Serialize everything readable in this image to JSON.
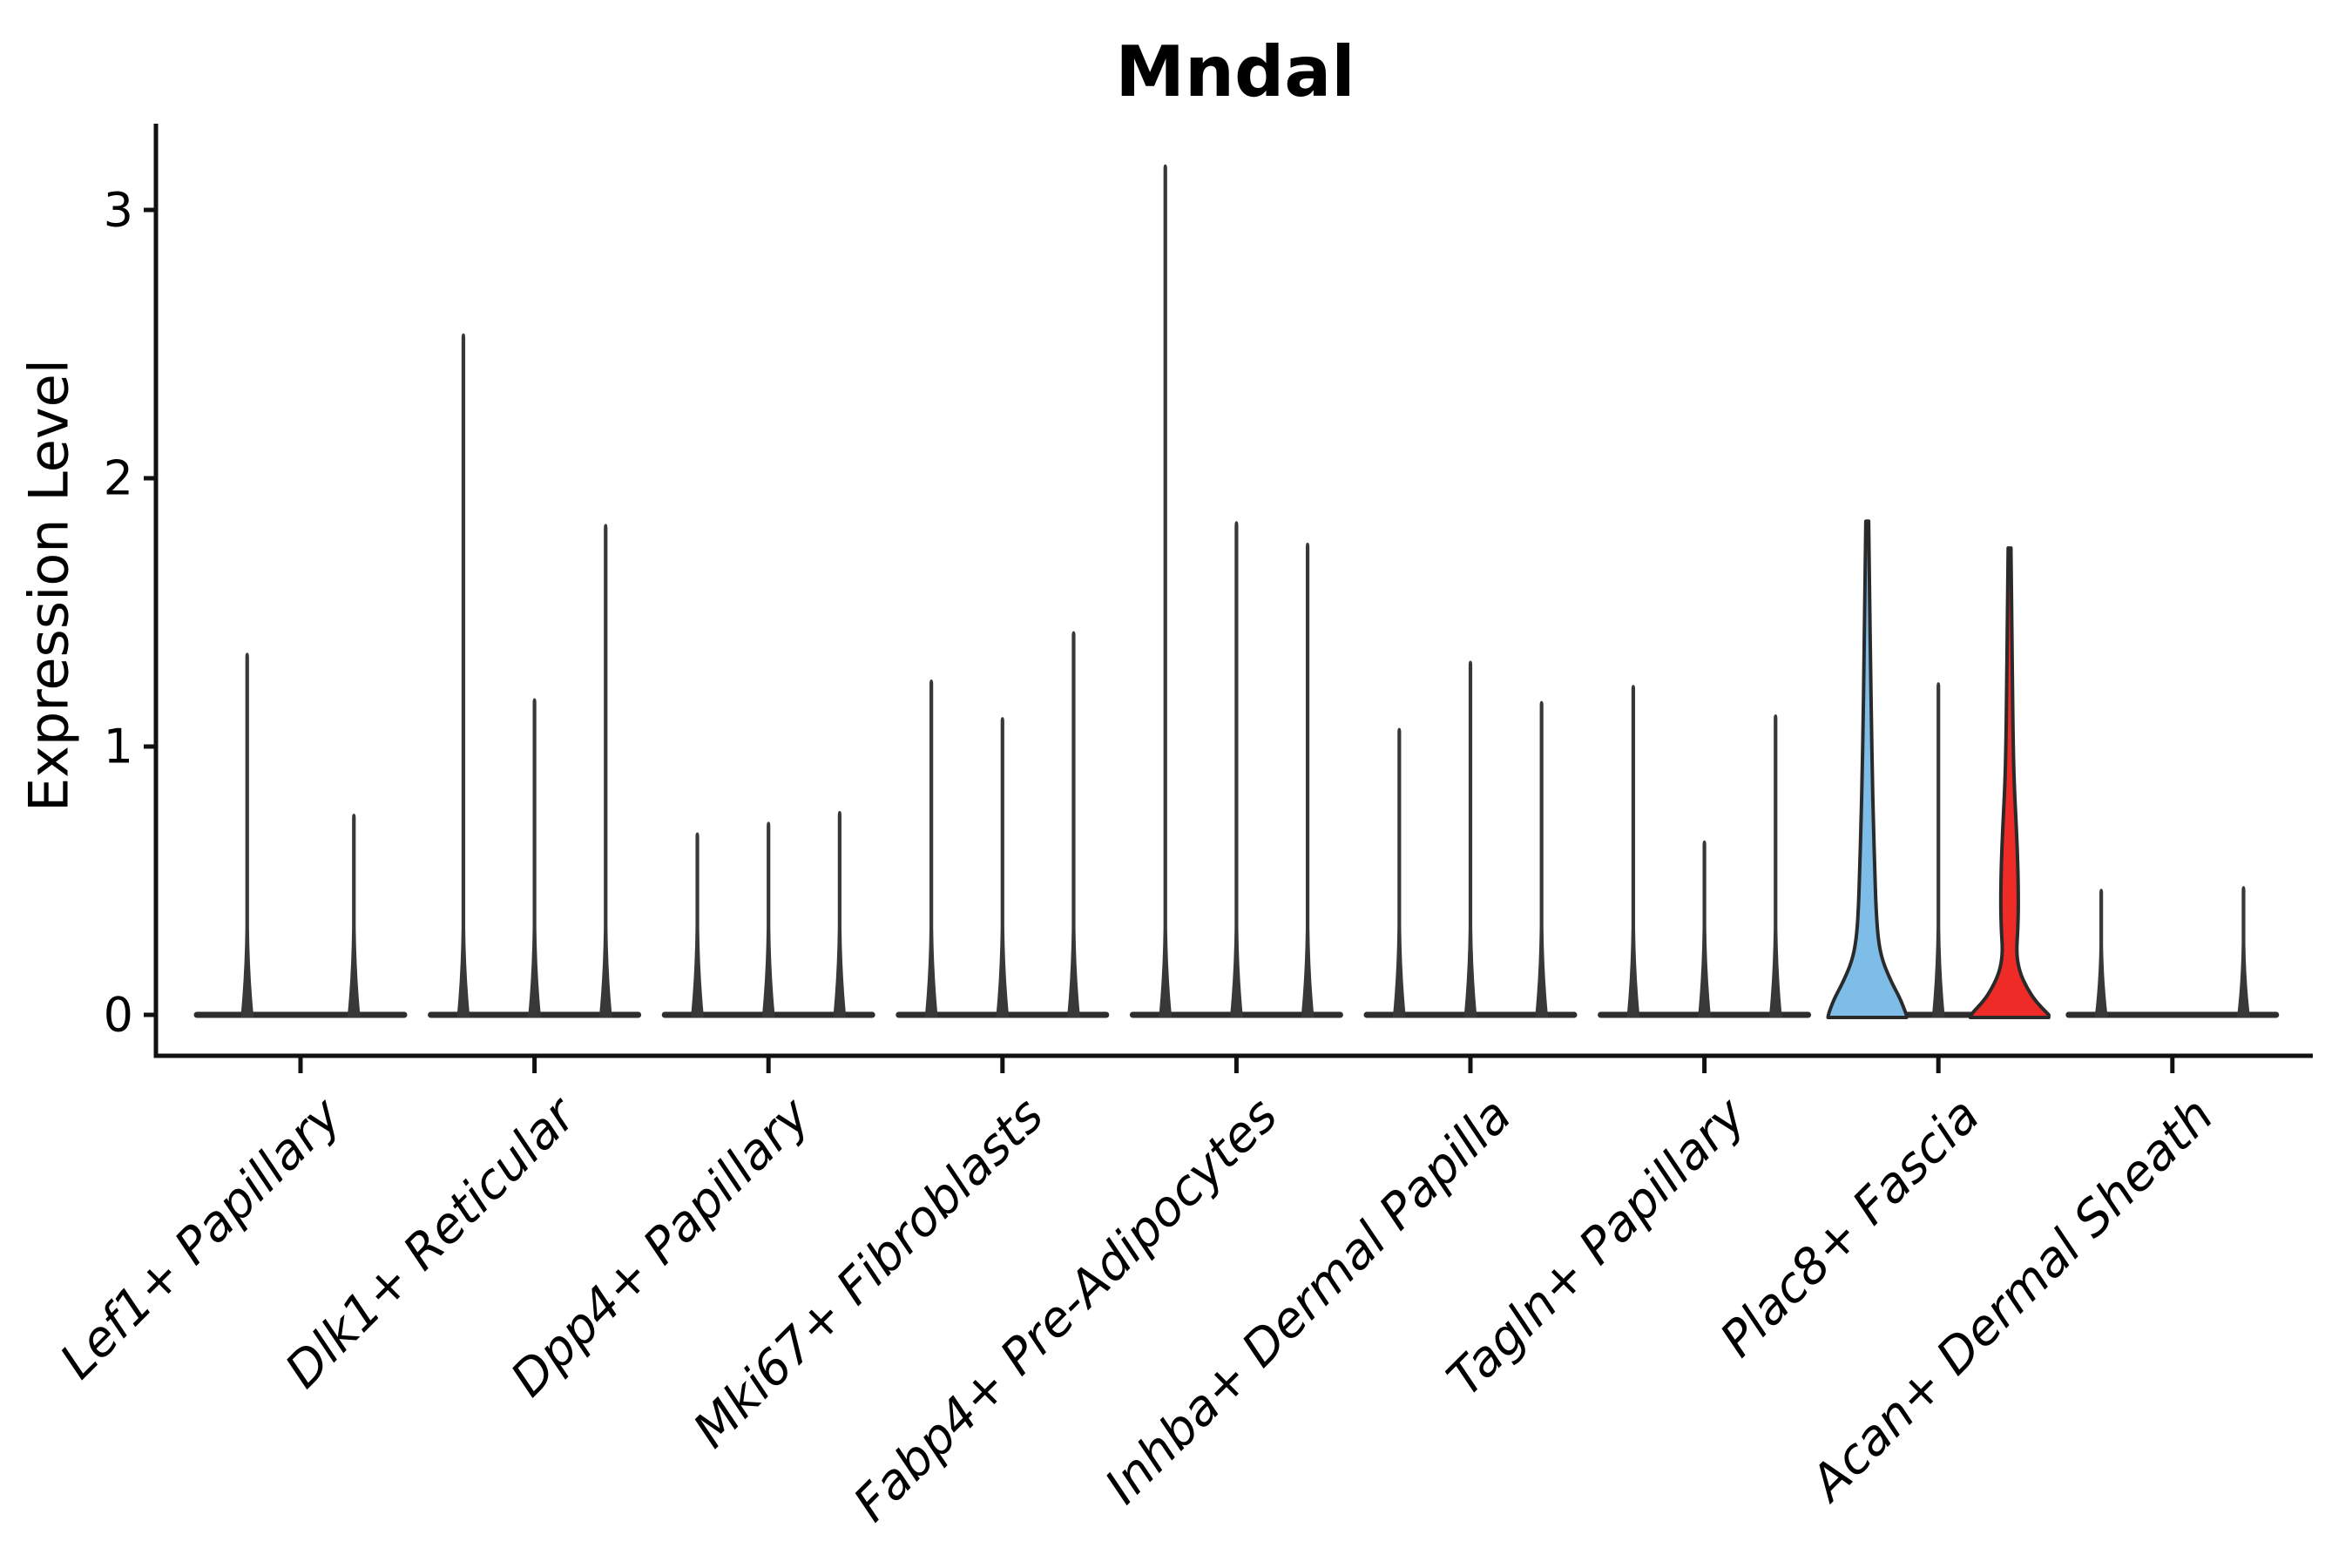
{
  "chart_data": {
    "type": "violin",
    "title": "Mndal",
    "ylabel": "Expression Level",
    "xlabel": "",
    "yticks": [
      0,
      1,
      2,
      3
    ],
    "ylim": [
      -0.16,
      3.33
    ],
    "grid": "off",
    "legend": "none",
    "colors": {
      "axis": "#111111",
      "spike": "#383838",
      "baseline": "#2e2e2e",
      "violin_outline": "#2a2a2a",
      "highlight_blue": "#7dbde8",
      "highlight_red": "#ee2b26",
      "background": "#ffffff"
    },
    "groups": [
      {
        "label": "Lef1+ Papillary",
        "violins": [
          {
            "max": 1.35
          },
          {
            "max": 0.75
          }
        ]
      },
      {
        "label": "Dlk1+ Reticular",
        "violins": [
          {
            "max": 2.54
          },
          {
            "max": 1.18
          },
          {
            "max": 1.83
          }
        ]
      },
      {
        "label": "Dpp4+ Papillary",
        "violins": [
          {
            "max": 0.68
          },
          {
            "max": 0.72
          },
          {
            "max": 0.76
          }
        ]
      },
      {
        "label": "Mki67+ Fibroblasts",
        "violins": [
          {
            "max": 1.25
          },
          {
            "max": 1.11
          },
          {
            "max": 1.43
          }
        ]
      },
      {
        "label": "Fabp4+ Pre-Adipocytes",
        "violins": [
          {
            "max": 3.17
          },
          {
            "max": 1.84
          },
          {
            "max": 1.76
          }
        ]
      },
      {
        "label": "Inhba+ Dermal Papilla",
        "violins": [
          {
            "max": 1.07
          },
          {
            "max": 1.32
          },
          {
            "max": 1.17
          }
        ]
      },
      {
        "label": "Tagln+ Papillary",
        "violins": [
          {
            "max": 1.23
          },
          {
            "max": 0.65
          },
          {
            "max": 1.12
          }
        ]
      },
      {
        "label": "Plac8+ Fascia",
        "violins": [
          {
            "max": 1.84,
            "fill": "#7dbde8",
            "profile": [
              [
                0,
                45
              ],
              [
                0.06,
                38
              ],
              [
                0.12,
                28
              ],
              [
                0.2,
                17.5
              ],
              [
                0.28,
                12.5
              ],
              [
                0.4,
                10
              ],
              [
                0.55,
                8.6
              ],
              [
                0.72,
                7
              ],
              [
                0.9,
                5.8
              ],
              [
                1.1,
                4.7
              ],
              [
                1.3,
                3.8
              ],
              [
                1.55,
                2.8
              ],
              [
                1.84,
                1.6
              ]
            ]
          },
          {
            "max": 1.24
          },
          {
            "max": 1.74,
            "fill": "#ee2b26",
            "profile": [
              [
                0,
                45
              ],
              [
                0.05,
                30
              ],
              [
                0.1,
                20
              ],
              [
                0.16,
                11.5
              ],
              [
                0.23,
                7.8
              ],
              [
                0.32,
                9.6
              ],
              [
                0.42,
                10.2
              ],
              [
                0.55,
                9.6
              ],
              [
                0.7,
                7.8
              ],
              [
                0.85,
                5.4
              ],
              [
                1.0,
                4.2
              ],
              [
                1.2,
                3.4
              ],
              [
                1.45,
                2.6
              ],
              [
                1.74,
                1.6
              ]
            ]
          }
        ]
      },
      {
        "label": "Acan+ Dermal Sheath",
        "violins": [
          {
            "max": 0.47
          },
          {
            "max": 0.0
          },
          {
            "max": 0.48
          }
        ]
      }
    ]
  }
}
